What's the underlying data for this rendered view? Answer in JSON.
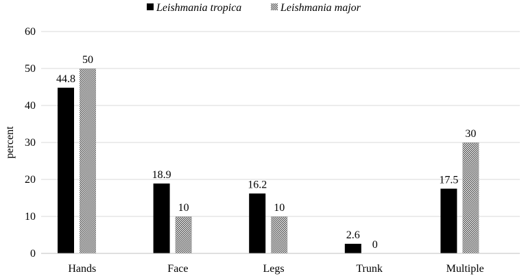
{
  "chart_data": {
    "type": "bar",
    "categories": [
      "Hands",
      "Face",
      "Legs",
      "Trunk",
      "Multiple"
    ],
    "series": [
      {
        "name": "Leishmania tropica",
        "values": [
          44.8,
          18.9,
          16.2,
          2.6,
          17.5
        ],
        "color": "#000000",
        "fill": "solid"
      },
      {
        "name": "Leishmania major",
        "values": [
          50,
          10,
          10,
          0,
          30
        ],
        "color": "#555555",
        "fill": "checkered"
      }
    ],
    "data_labels": [
      [
        "44.8",
        "18.9",
        "16.2",
        "2.6",
        "17.5"
      ],
      [
        "50",
        "10",
        "10",
        "0",
        "30"
      ]
    ],
    "title": "",
    "xlabel": "",
    "ylabel": "percent",
    "ylim": [
      0,
      60
    ],
    "yticks": [
      "0",
      "10",
      "20",
      "30",
      "40",
      "50",
      "60"
    ],
    "grid": true,
    "legend_position": "top-center"
  }
}
